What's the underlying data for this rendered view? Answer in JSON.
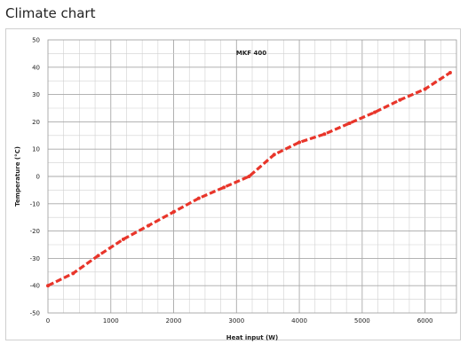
{
  "page": {
    "title": "Climate chart"
  },
  "chart_data": {
    "type": "line",
    "title": "MKF 400",
    "xlabel": "Heat input (W)",
    "ylabel": "Temperature (°C)",
    "xlim": [
      0,
      6500
    ],
    "ylim": [
      -50,
      50
    ],
    "x_ticks": [
      0,
      1000,
      2000,
      3000,
      4000,
      5000,
      6000
    ],
    "y_ticks": [
      50,
      40,
      30,
      20,
      10,
      0,
      -10,
      -20,
      -30,
      -40,
      -50
    ],
    "grid": true,
    "series": [
      {
        "color": "#e8352a",
        "x": [
          0,
          400,
          800,
          1200,
          1600,
          2000,
          2400,
          2800,
          3200,
          3600,
          4000,
          4400,
          4800,
          5200,
          5600,
          6000,
          6400
        ],
        "y": [
          -40,
          -35.5,
          -29,
          -23,
          -18,
          -13,
          -8,
          -4,
          0,
          8,
          12.5,
          15.5,
          19.5,
          23.5,
          28,
          32,
          38
        ]
      }
    ]
  }
}
